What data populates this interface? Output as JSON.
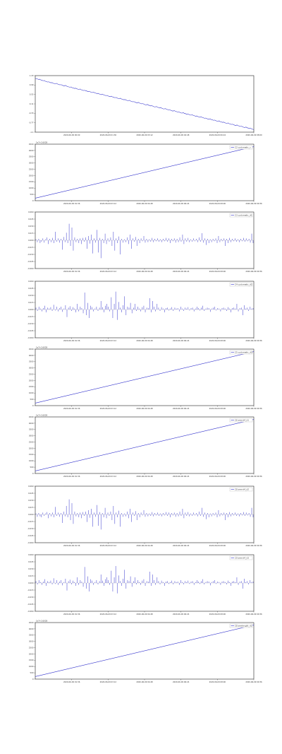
{
  "figure": {
    "accent_color": "#3333cc"
  },
  "chart_data": [
    {
      "type": "line",
      "legend": "",
      "ylim": [
        -1.1,
        1.1
      ],
      "y_ticks": [
        "-1.1",
        "-0.77",
        "-0.33",
        "0.11",
        "0.55",
        "0.99",
        "1.43"
      ],
      "x_ticks": [
        "2020-06-09 00:00",
        "2020-06-09 01:36",
        "2020-06-09 03:12",
        "2020-06-09 04:48",
        "2020-06-09 06:24",
        "2020-06-09 08:00"
      ],
      "offset_label": "",
      "values": [
        0.99,
        0.98,
        0.97,
        0.95,
        0.96,
        0.93,
        0.92,
        0.9,
        0.91,
        0.88,
        0.87,
        0.85,
        0.86,
        0.84,
        0.82,
        0.83,
        0.8,
        0.79,
        0.78,
        0.8,
        0.77,
        0.76,
        0.74,
        0.75,
        0.73,
        0.71,
        0.7,
        0.72,
        0.69,
        0.67,
        0.66,
        0.65,
        0.66,
        0.63,
        0.62,
        0.6,
        0.61,
        0.59,
        0.57,
        0.56,
        0.58,
        0.55,
        0.54,
        0.52,
        0.53,
        0.51,
        0.5,
        0.48,
        0.49,
        0.47,
        0.45,
        0.44,
        0.46,
        0.43,
        0.42,
        0.4,
        0.41,
        0.39,
        0.37,
        0.36,
        0.38,
        0.35,
        0.34,
        0.32,
        0.33,
        0.31,
        0.29,
        0.28,
        0.3,
        0.27,
        0.26,
        0.24,
        0.25,
        0.23,
        0.21,
        0.2,
        0.22,
        0.19,
        0.18,
        0.16,
        0.17,
        0.15,
        0.13,
        0.12,
        0.14,
        0.11,
        0.1,
        0.08,
        0.09,
        0.07,
        0.05,
        0.04,
        0.06,
        0.03,
        0.02,
        0.0,
        0.01,
        -0.01,
        -0.03,
        -0.04,
        -0.02,
        -0.05,
        -0.06,
        -0.08,
        -0.07,
        -0.09,
        -0.11,
        -0.12,
        -0.1,
        -0.13,
        -0.14,
        -0.16,
        -0.15,
        -0.17,
        -0.19,
        -0.2,
        -0.18,
        -0.21,
        -0.22,
        -0.24,
        -0.23,
        -0.25,
        -0.27,
        -0.28,
        -0.26,
        -0.29,
        -0.3,
        -0.32,
        -0.31,
        -0.33,
        -0.35,
        -0.36,
        -0.34,
        -0.37,
        -0.38,
        -0.4,
        -0.39,
        -0.41,
        -0.43,
        -0.44,
        -0.42,
        -0.45,
        -0.46,
        -0.48,
        -0.47,
        -0.49,
        -0.51,
        -0.52,
        -0.5,
        -0.53,
        -0.54,
        -0.56,
        -0.55,
        -0.57,
        -0.59,
        -0.6,
        -0.58,
        -0.61,
        -0.62,
        -0.64,
        -0.63,
        -0.65,
        -0.67,
        -0.68,
        -0.66,
        -0.69,
        -0.7,
        -0.72,
        -0.71,
        -0.73,
        -0.75,
        -0.76,
        -0.74,
        -0.77,
        -0.78,
        -0.8,
        -0.79,
        -0.81,
        -0.83,
        -0.84,
        -0.82,
        -0.85,
        -0.86,
        -0.88,
        -0.87,
        -0.89,
        -0.91,
        -0.92,
        -0.9,
        -0.93,
        -0.94,
        -0.96,
        -0.95,
        -0.97,
        -0.99,
        -1.0
      ]
    },
    {
      "type": "line",
      "legend": "C2 cyclomatic_c",
      "ylim": [
        0,
        4500
      ],
      "y_ticks": [
        "0",
        "500",
        "1000",
        "1500",
        "2000",
        "2500",
        "3000",
        "3500",
        "4000",
        "4500"
      ],
      "x_ticks": [
        "2020-06-09 01:36",
        "2020-06-09 03:12",
        "2020-06-09 04:48",
        "2020-06-09 06:24",
        "2020-06-09 08:00",
        "2020-06-09 09:36"
      ],
      "offset_label": "1e7+2.6028",
      "start": 200,
      "end": 4300
    },
    {
      "type": "bar",
      "legend": "C3 cyclomatic_d1",
      "ylim": [
        -0.06,
        0.06
      ],
      "y_ticks": [
        "-0.060",
        "-0.045",
        "-0.030",
        "-0.015",
        "0.000",
        "0.015",
        "0.030",
        "0.045",
        "0.060"
      ],
      "x_ticks": [
        "2020-06-09 01:36",
        "2020-06-09 03:12",
        "2020-06-09 04:48",
        "2020-06-09 06:24",
        "2020-06-09 08:00",
        "2020-06-09 09:36"
      ],
      "offset_label": "",
      "values": [
        0.002,
        -0.004,
        0.003,
        -0.006,
        -0.003,
        0.004,
        -0.005,
        0.002,
        0.006,
        -0.008,
        0.003,
        -0.004,
        0.005,
        -0.006,
        0.018,
        -0.003,
        0.004,
        -0.005,
        0.003,
        -0.02,
        0.007,
        -0.004,
        0.016,
        -0.006,
        0.035,
        -0.012,
        0.027,
        -0.022,
        0.006,
        -0.004,
        0.003,
        -0.006,
        0.004,
        -0.008,
        0.005,
        -0.003,
        0.006,
        -0.018,
        0.009,
        -0.007,
        0.012,
        -0.028,
        0.004,
        -0.005,
        0.022,
        -0.026,
        0.005,
        -0.038,
        0.003,
        -0.006,
        0.014,
        -0.008,
        0.004,
        -0.003,
        0.006,
        -0.012,
        0.018,
        -0.022,
        0.004,
        -0.006,
        0.008,
        -0.03,
        0.003,
        -0.005,
        0.002,
        -0.004,
        0.006,
        -0.008,
        0.012,
        -0.018,
        0.004,
        -0.003,
        0.007,
        -0.012,
        0.003,
        -0.006,
        0.004,
        -0.002,
        0.009,
        -0.005,
        0.003,
        -0.004,
        0.002,
        -0.003,
        0.005,
        -0.004,
        0.003,
        -0.002,
        0.004,
        -0.003,
        0.002,
        -0.004,
        0.003,
        -0.002,
        0.005,
        -0.003,
        0.004,
        -0.006,
        0.003,
        -0.002,
        0.004,
        -0.005,
        0.003,
        -0.004,
        0.006,
        -0.003,
        0.012,
        -0.008,
        0.004,
        -0.003,
        0.005,
        -0.004,
        0.002,
        -0.003,
        0.004,
        -0.002,
        0.003,
        -0.004,
        0.006,
        -0.003,
        0.015,
        -0.005,
        0.004,
        -0.01,
        0.003,
        -0.006,
        0.002,
        -0.004,
        0.003,
        -0.002,
        0.004,
        -0.006,
        0.009,
        -0.004,
        0.003,
        -0.002,
        0.004,
        -0.012,
        0.003,
        -0.006,
        0.005,
        -0.004,
        0.003,
        -0.002,
        0.004,
        -0.003,
        0.002,
        -0.004,
        0.003,
        -0.002,
        0.005,
        -0.003,
        0.004,
        -0.002,
        0.003,
        -0.005,
        0.014,
        -0.006
      ]
    },
    {
      "type": "bar",
      "legend": "C4 cyclomatic_d2",
      "ylim": [
        -0.06,
        0.06
      ],
      "y_ticks": [
        "-0.060",
        "-0.045",
        "-0.030",
        "-0.015",
        "0.000",
        "0.015",
        "0.030",
        "0.045",
        "0.060"
      ],
      "x_ticks": [
        "2020-06-09 01:36",
        "2020-06-09 03:12",
        "2020-06-09 04:48",
        "2020-06-09 06:24",
        "2020-06-09 08:00",
        "2020-06-09 09:36"
      ],
      "offset_label": "",
      "values": [
        0.004,
        -0.003,
        0.006,
        0.002,
        -0.004,
        0.003,
        0.008,
        -0.006,
        0.004,
        0.002,
        0.005,
        -0.003,
        0.01,
        -0.002,
        0.006,
        -0.004,
        0.003,
        0.006,
        -0.005,
        0.002,
        0.009,
        -0.016,
        0.004,
        0.007,
        -0.003,
        0.005,
        0.002,
        -0.006,
        0.012,
        -0.004,
        0.006,
        0.003,
        -0.008,
        0.036,
        -0.012,
        0.014,
        -0.018,
        0.008,
        0.005,
        -0.004,
        0.002,
        0.006,
        -0.003,
        0.004,
        0.018,
        0.005,
        -0.006,
        0.008,
        0.012,
        0.006,
        -0.004,
        0.026,
        -0.018,
        0.012,
        0.038,
        -0.022,
        0.016,
        0.004,
        -0.006,
        0.009,
        0.028,
        -0.012,
        0.006,
        0.004,
        0.014,
        -0.008,
        0.004,
        0.012,
        -0.003,
        0.006,
        0.002,
        -0.004,
        0.005,
        0.008,
        -0.006,
        0.004,
        0.003,
        0.024,
        -0.006,
        0.018,
        0.006,
        -0.004,
        0.012,
        0.004,
        -0.003,
        0.005,
        0.002,
        -0.006,
        0.003,
        0.004,
        -0.002,
        0.002,
        0.005,
        -0.003,
        0.004,
        0.002,
        0.003,
        -0.004,
        0.006,
        0.002,
        -0.003,
        0.004,
        0.002,
        0.005,
        -0.002,
        0.003,
        0.004,
        -0.004,
        0.002,
        0.006,
        0.003,
        -0.002,
        0.004,
        0.008,
        -0.003,
        0.002,
        0.004,
        0.003,
        -0.005,
        0.002,
        0.004,
        0.006,
        -0.002,
        0.003,
        0.002,
        -0.004,
        0.003,
        0.004,
        0.002,
        -0.003,
        0.005,
        0.002,
        -0.006,
        0.003,
        0.004,
        0.002,
        0.012,
        -0.004,
        0.003,
        0.004,
        -0.012,
        0.009,
        0.002,
        0.004,
        -0.003,
        0.006,
        0.002,
        0.003
      ]
    },
    {
      "type": "line",
      "legend": "C5 cyclomatic_d3",
      "ylim": [
        0,
        4500
      ],
      "y_ticks": [
        "0",
        "500",
        "1000",
        "1500",
        "2000",
        "2500",
        "3000",
        "3500",
        "4000",
        "4500"
      ],
      "x_ticks": [
        "2020-06-09 01:36",
        "2020-06-09 03:12",
        "2020-06-09 04:48",
        "2020-06-09 06:24",
        "2020-06-09 08:00",
        "2020-06-09 09:36"
      ],
      "offset_label": "1e7+2.6028",
      "start": 200,
      "end": 4300
    },
    {
      "type": "line",
      "legend": "C6 sem-d4_d1",
      "ylim": [
        0,
        4500
      ],
      "y_ticks": [
        "0",
        "500",
        "1000",
        "1500",
        "2000",
        "2500",
        "3000",
        "3500",
        "4000",
        "4500"
      ],
      "x_ticks": [
        "2020-06-09 01:36",
        "2020-06-09 03:12",
        "2020-06-09 04:48",
        "2020-06-09 06:24",
        "2020-06-09 08:00",
        "2020-06-09 09:36"
      ],
      "offset_label": "1e7+2.6028",
      "start": 200,
      "end": 4300
    },
    {
      "type": "bar",
      "legend": "C8 sem-d4_d2",
      "ylim": [
        -0.06,
        0.06
      ],
      "y_ticks": [
        "-0.060",
        "-0.045",
        "-0.030",
        "-0.015",
        "0.000",
        "0.015",
        "0.030",
        "0.045",
        "0.060"
      ],
      "x_ticks": [
        "2020-06-09 01:36",
        "2020-06-09 03:12",
        "2020-06-09 04:48",
        "2020-06-09 06:24",
        "2020-06-09 08:00",
        "2020-06-09 09:36"
      ],
      "offset_label": "",
      "values": [
        0.002,
        -0.005,
        0.003,
        -0.004,
        -0.006,
        0.004,
        -0.003,
        0.002,
        0.005,
        -0.008,
        0.003,
        -0.004,
        0.004,
        -0.006,
        0.016,
        -0.003,
        0.004,
        -0.005,
        0.003,
        -0.018,
        0.006,
        -0.004,
        0.018,
        -0.006,
        0.032,
        -0.012,
        0.024,
        -0.02,
        0.006,
        -0.004,
        0.003,
        -0.006,
        0.004,
        -0.008,
        0.005,
        -0.003,
        0.006,
        -0.016,
        0.009,
        -0.007,
        0.012,
        -0.026,
        0.004,
        -0.005,
        0.02,
        -0.024,
        0.005,
        -0.032,
        0.003,
        -0.006,
        0.014,
        -0.008,
        0.004,
        -0.003,
        0.006,
        -0.012,
        0.018,
        -0.02,
        0.004,
        -0.006,
        0.008,
        -0.026,
        0.003,
        -0.005,
        0.002,
        -0.004,
        0.006,
        -0.008,
        0.012,
        -0.016,
        0.004,
        -0.003,
        0.007,
        -0.012,
        0.003,
        -0.006,
        0.004,
        -0.002,
        0.009,
        -0.005,
        0.003,
        -0.004,
        0.002,
        -0.003,
        0.005,
        -0.004,
        0.003,
        -0.002,
        0.004,
        -0.003,
        0.002,
        -0.004,
        0.003,
        -0.002,
        0.005,
        -0.003,
        0.004,
        -0.006,
        0.003,
        -0.002,
        0.004,
        -0.005,
        0.003,
        -0.004,
        0.006,
        -0.003,
        0.012,
        -0.008,
        0.004,
        -0.003,
        0.005,
        -0.004,
        0.002,
        -0.003,
        0.004,
        -0.002,
        0.003,
        -0.004,
        0.006,
        -0.003,
        0.014,
        -0.005,
        0.004,
        -0.01,
        0.003,
        -0.006,
        0.002,
        -0.004,
        0.003,
        -0.002,
        0.004,
        -0.006,
        0.009,
        -0.004,
        0.003,
        -0.002,
        0.004,
        -0.012,
        0.003,
        -0.006,
        0.005,
        -0.004,
        0.003,
        -0.002,
        0.004,
        -0.003,
        0.002,
        -0.004,
        0.003,
        -0.002,
        0.005,
        -0.003,
        0.004,
        -0.002,
        0.003,
        -0.005,
        0.014,
        -0.006
      ]
    },
    {
      "type": "bar",
      "legend": "C9 sem-d4_d3",
      "ylim": [
        -0.06,
        0.06
      ],
      "y_ticks": [
        "-0.060",
        "-0.045",
        "-0.030",
        "-0.015",
        "0.000",
        "0.015",
        "0.030",
        "0.045",
        "0.060"
      ],
      "x_ticks": [
        "2020-06-09 01:36",
        "2020-06-09 03:12",
        "2020-06-09 04:48",
        "2020-06-09 06:24",
        "2020-06-09 08:00",
        "2020-06-09 09:36"
      ],
      "offset_label": "",
      "values": [
        0.004,
        -0.003,
        0.006,
        0.002,
        -0.004,
        0.003,
        0.008,
        -0.006,
        0.004,
        0.002,
        0.005,
        -0.003,
        0.01,
        -0.002,
        0.006,
        -0.004,
        0.003,
        0.006,
        -0.005,
        0.002,
        0.009,
        -0.016,
        0.004,
        0.007,
        -0.003,
        0.005,
        0.002,
        -0.006,
        0.012,
        -0.004,
        0.006,
        0.003,
        -0.008,
        0.034,
        -0.012,
        0.014,
        -0.018,
        0.008,
        0.005,
        -0.004,
        0.002,
        0.006,
        -0.003,
        0.004,
        0.018,
        0.005,
        -0.006,
        0.008,
        0.012,
        0.006,
        -0.004,
        0.026,
        -0.018,
        0.012,
        0.036,
        -0.022,
        0.016,
        0.004,
        -0.006,
        0.009,
        0.028,
        -0.012,
        0.006,
        0.004,
        0.014,
        -0.008,
        0.004,
        0.012,
        -0.003,
        0.006,
        0.002,
        -0.004,
        0.005,
        0.008,
        -0.006,
        0.004,
        0.003,
        0.024,
        -0.006,
        0.018,
        0.006,
        -0.004,
        0.012,
        0.004,
        -0.003,
        0.005,
        0.002,
        -0.006,
        0.003,
        0.004,
        -0.002,
        0.002,
        0.005,
        -0.003,
        0.004,
        0.002,
        0.003,
        -0.004,
        0.006,
        0.002,
        -0.003,
        0.004,
        0.002,
        0.005,
        -0.002,
        0.003,
        0.004,
        -0.004,
        0.002,
        0.006,
        0.003,
        -0.002,
        0.004,
        0.008,
        -0.003,
        0.002,
        0.004,
        0.003,
        -0.005,
        0.002,
        0.004,
        0.006,
        -0.002,
        0.003,
        0.002,
        -0.004,
        0.003,
        0.004,
        0.002,
        -0.003,
        0.005,
        0.002,
        -0.006,
        0.003,
        0.004,
        0.002,
        0.012,
        -0.004,
        0.003,
        0.004,
        -0.012,
        0.009,
        0.002,
        0.004,
        -0.003,
        0.006,
        0.002,
        0.003
      ]
    },
    {
      "type": "line",
      "legend": "C8 semlength_d1",
      "ylim": [
        0,
        4500
      ],
      "y_ticks": [
        "0",
        "500",
        "1000",
        "1500",
        "2000",
        "2500",
        "3000",
        "3500",
        "4000",
        "4500"
      ],
      "x_ticks": [
        "2020-06-09 01:36",
        "2020-06-09 03:12",
        "2020-06-09 04:48",
        "2020-06-09 06:24",
        "2020-06-09 08:00",
        "2020-06-09 09:36"
      ],
      "offset_label": "1e7+2.6028",
      "start": 200,
      "end": 4300
    }
  ]
}
